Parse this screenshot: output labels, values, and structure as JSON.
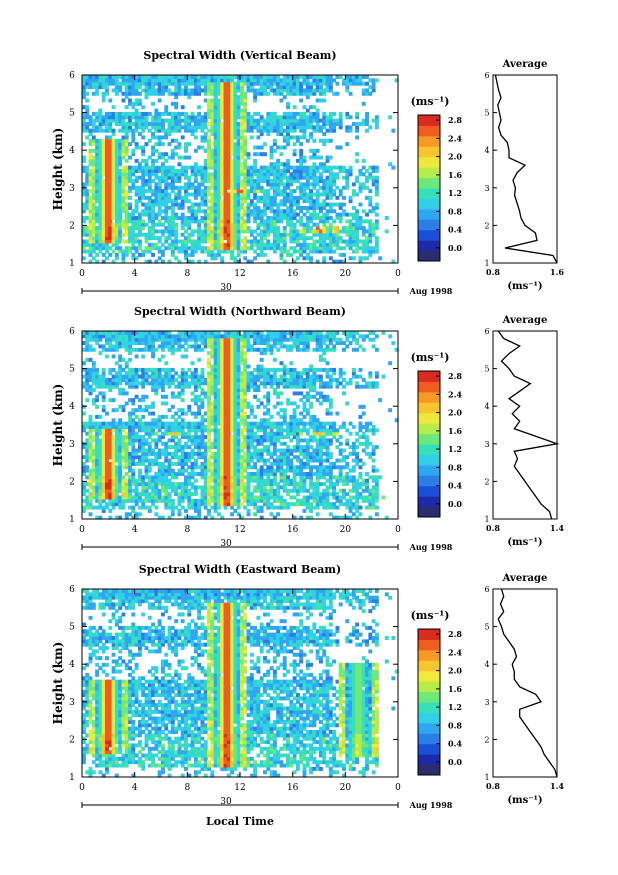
{
  "panels": [
    {
      "title": "Spectral Width (Vertical Beam)",
      "ylabel": "Height (km)",
      "y_ticks": [
        "1",
        "2",
        "3",
        "4",
        "5",
        "6"
      ],
      "x_ticks": [
        "0",
        "4",
        "8",
        "12",
        "16",
        "20",
        "0"
      ],
      "date_label": "30",
      "month_label": "Aug 1998",
      "colorbar_unit": "(ms⁻¹)",
      "colorbar_ticks": [
        "0.0",
        "0.4",
        "0.8",
        "1.2",
        "1.6",
        "2.0",
        "2.4",
        "2.8"
      ],
      "avg_title": "Average",
      "avg_xlabel": "(ms⁻¹)",
      "avg_x_ticks": [
        "0.8",
        "1.6"
      ],
      "avg_y_ticks": [
        "1",
        "2",
        "3",
        "4",
        "5",
        "6"
      ]
    },
    {
      "title": "Spectral Width (Northward Beam)",
      "ylabel": "Height (km)",
      "y_ticks": [
        "1",
        "2",
        "3",
        "4",
        "5",
        "6"
      ],
      "x_ticks": [
        "0",
        "4",
        "8",
        "12",
        "16",
        "20",
        "0"
      ],
      "date_label": "30",
      "month_label": "Aug 1998",
      "colorbar_unit": "(ms⁻¹)",
      "colorbar_ticks": [
        "0.0",
        "0.4",
        "0.8",
        "1.2",
        "1.6",
        "2.0",
        "2.4",
        "2.8"
      ],
      "avg_title": "Average",
      "avg_xlabel": "(ms⁻¹)",
      "avg_x_ticks": [
        "0.8",
        "1.4"
      ],
      "avg_y_ticks": [
        "1",
        "2",
        "3",
        "4",
        "5",
        "6"
      ]
    },
    {
      "title": "Spectral Width (Eastward Beam)",
      "ylabel": "Height (km)",
      "y_ticks": [
        "1",
        "2",
        "3",
        "4",
        "5",
        "6"
      ],
      "x_ticks": [
        "0",
        "4",
        "8",
        "12",
        "16",
        "20",
        "0"
      ],
      "date_label": "30",
      "month_label": "Aug 1998",
      "colorbar_unit": "(ms⁻¹)",
      "colorbar_ticks": [
        "0.0",
        "0.4",
        "0.8",
        "1.2",
        "1.6",
        "2.0",
        "2.4",
        "2.8"
      ],
      "avg_title": "Average",
      "avg_xlabel": "(ms⁻¹)",
      "avg_x_ticks": [
        "0.8",
        "1.4"
      ],
      "avg_y_ticks": [
        "1",
        "2",
        "3",
        "4",
        "5",
        "6"
      ]
    }
  ],
  "xlabel": "Local Time",
  "colormap": [
    "#2b2d6b",
    "#1c2aa8",
    "#1b4fd8",
    "#2b7de8",
    "#2fa6f0",
    "#2fd0e8",
    "#37e0b8",
    "#6fe87a",
    "#b6ec4a",
    "#eee93a",
    "#f7c52e",
    "#f79a25",
    "#ef5d21",
    "#d92b1e"
  ],
  "chart_data": [
    {
      "type": "heatmap",
      "title": "Spectral Width (Vertical Beam)",
      "xlabel": "",
      "ylabel": "Height (km)",
      "xlim": [
        0,
        24
      ],
      "ylim": [
        1,
        6
      ],
      "colorbar_range": [
        0.0,
        2.8
      ],
      "features": [
        {
          "x": 2.0,
          "y_range": [
            1.5,
            4.3
          ],
          "peak": 2.8
        },
        {
          "x": 11.0,
          "y_range": [
            1.4,
            5.8
          ],
          "peak": 2.8
        },
        {
          "x": 12.0,
          "y_range": [
            2.9,
            3.0
          ],
          "peak": 2.8
        },
        {
          "x": 18.0,
          "y_range": [
            1.8,
            2.0
          ],
          "peak": 2.5
        }
      ],
      "average_profile": {
        "x_range": [
          0.8,
          1.6
        ],
        "height": [
          1.0,
          1.2,
          1.4,
          1.6,
          1.8,
          2.0,
          2.2,
          2.4,
          2.6,
          2.8,
          3.0,
          3.2,
          3.4,
          3.6,
          3.8,
          4.0,
          4.2,
          4.4,
          4.6,
          4.8,
          5.0,
          5.2,
          5.4,
          5.6,
          5.8,
          6.0
        ],
        "value": [
          1.6,
          1.55,
          0.95,
          1.35,
          1.33,
          1.2,
          1.15,
          1.13,
          1.1,
          1.07,
          1.08,
          1.05,
          1.1,
          1.2,
          1.0,
          1.0,
          0.98,
          0.9,
          0.87,
          0.9,
          0.88,
          0.86,
          0.9,
          0.87,
          0.85,
          0.83
        ]
      }
    },
    {
      "type": "heatmap",
      "title": "Spectral Width (Northward Beam)",
      "xlabel": "",
      "ylabel": "Height (km)",
      "xlim": [
        0,
        24
      ],
      "ylim": [
        1,
        6
      ],
      "colorbar_range": [
        0.0,
        2.8
      ],
      "features": [
        {
          "x": 2.0,
          "y_range": [
            1.5,
            3.4
          ],
          "peak": 2.8
        },
        {
          "x": 11.0,
          "y_range": [
            1.4,
            5.8
          ],
          "peak": 2.8
        },
        {
          "x": 7.0,
          "y_range": [
            3.2,
            3.3
          ],
          "peak": 2.4
        },
        {
          "x": 18.0,
          "y_range": [
            3.2,
            3.3
          ],
          "peak": 2.4
        }
      ],
      "average_profile": {
        "x_range": [
          0.8,
          1.4
        ],
        "height": [
          1.0,
          1.2,
          1.4,
          1.6,
          1.8,
          2.0,
          2.2,
          2.4,
          2.6,
          2.8,
          3.0,
          3.2,
          3.4,
          3.6,
          3.8,
          4.0,
          4.2,
          4.4,
          4.6,
          4.8,
          5.0,
          5.2,
          5.4,
          5.6,
          5.8,
          6.0
        ],
        "value": [
          1.35,
          1.33,
          1.25,
          1.2,
          1.15,
          1.1,
          1.05,
          1.0,
          1.03,
          1.0,
          1.4,
          1.2,
          1.0,
          1.05,
          0.98,
          1.05,
          0.95,
          1.05,
          1.15,
          1.0,
          0.95,
          0.88,
          0.95,
          1.05,
          0.9,
          0.85
        ]
      }
    },
    {
      "type": "heatmap",
      "title": "Spectral Width (Eastward Beam)",
      "xlabel": "Local Time",
      "ylabel": "Height (km)",
      "xlim": [
        0,
        24
      ],
      "ylim": [
        1,
        6
      ],
      "colorbar_range": [
        0.0,
        2.8
      ],
      "features": [
        {
          "x": 2.0,
          "y_range": [
            1.6,
            3.6
          ],
          "peak": 2.8
        },
        {
          "x": 11.0,
          "y_range": [
            1.3,
            5.6
          ],
          "peak": 2.8
        },
        {
          "x": 21.0,
          "y_range": [
            1.5,
            4.0
          ],
          "peak": 1.8
        }
      ],
      "average_profile": {
        "x_range": [
          0.8,
          1.4
        ],
        "height": [
          1.0,
          1.2,
          1.4,
          1.6,
          1.8,
          2.0,
          2.2,
          2.4,
          2.6,
          2.8,
          3.0,
          3.2,
          3.4,
          3.6,
          3.8,
          4.0,
          4.2,
          4.4,
          4.6,
          4.8,
          5.0,
          5.2,
          5.4,
          5.6,
          5.8,
          6.0
        ],
        "value": [
          1.4,
          1.38,
          1.33,
          1.28,
          1.25,
          1.2,
          1.15,
          1.1,
          1.05,
          1.05,
          1.25,
          1.2,
          1.05,
          1.0,
          1.0,
          0.98,
          1.02,
          1.0,
          0.95,
          0.9,
          0.88,
          0.85,
          0.9,
          0.87,
          0.9,
          0.88
        ]
      }
    }
  ]
}
